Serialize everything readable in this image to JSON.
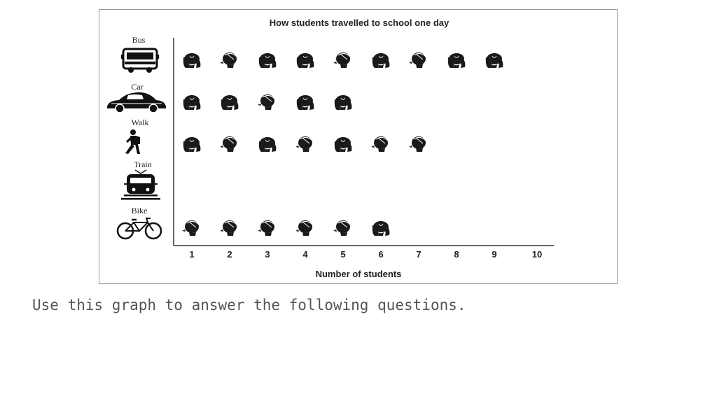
{
  "chart_data": {
    "type": "pictograph",
    "title": "How students travelled to school one day",
    "xlabel": "Number of students",
    "ylabel": "",
    "categories": [
      "Bus",
      "Car",
      "Walk",
      "Train",
      "Bike"
    ],
    "category_icons": [
      "bus-icon",
      "car-icon",
      "walker-icon",
      "train-icon",
      "bicycle-icon"
    ],
    "values": [
      9,
      5,
      7,
      0,
      6
    ],
    "symbol_types": [
      [
        "girl",
        "boy",
        "girl",
        "girl",
        "boy",
        "girl",
        "boy",
        "girl",
        "girl"
      ],
      [
        "girl",
        "girl",
        "boy",
        "girl",
        "girl"
      ],
      [
        "girl",
        "boy",
        "girl",
        "boy",
        "girl",
        "boy",
        "boy"
      ],
      [],
      [
        "boy",
        "boy",
        "boy",
        "boy",
        "boy",
        "girl"
      ]
    ],
    "x_ticks": [
      "1",
      "2",
      "3",
      "4",
      "5",
      "6",
      "7",
      "8",
      "9",
      "10"
    ],
    "xlim": [
      1,
      10
    ],
    "grid": false,
    "legend": "none",
    "symbol_color": "#1a1a1a"
  },
  "caption": "Use this graph to answer the following questions."
}
